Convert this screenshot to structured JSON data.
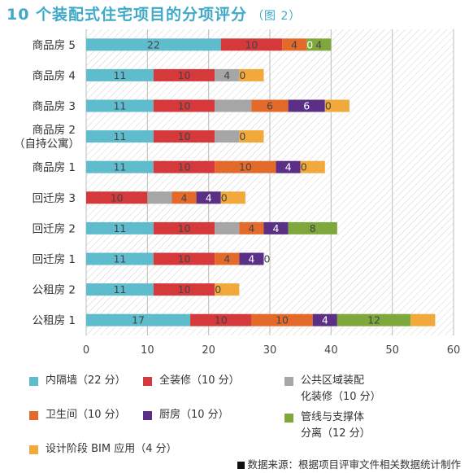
{
  "title": "10 个装配式住宅项目的分项评分",
  "subtitle": "（图 2）",
  "colors": {
    "partition": "#5fbccd",
    "decoration": "#d6393b",
    "public": "#a6a6a6",
    "bathroom": "#e46a2b",
    "kitchen": "#5b2f85",
    "pipeline": "#7ea83c",
    "bim": "#f2a93b"
  },
  "chart_data": {
    "type": "bar",
    "orientation": "horizontal",
    "stacked": true,
    "xlim": [
      0,
      60
    ],
    "xticks": [
      0,
      10,
      20,
      30,
      40,
      50,
      60
    ],
    "grid": true,
    "categories": [
      {
        "lines": [
          "商品房 5"
        ]
      },
      {
        "lines": [
          "商品房 4"
        ]
      },
      {
        "lines": [
          "商品房 3"
        ]
      },
      {
        "lines": [
          "商品房 2",
          "（自持公寓）"
        ]
      },
      {
        "lines": [
          "商品房 1"
        ]
      },
      {
        "lines": [
          "回迁房 3"
        ]
      },
      {
        "lines": [
          "回迁房 2"
        ]
      },
      {
        "lines": [
          "回迁房 1"
        ]
      },
      {
        "lines": [
          "公租房 2"
        ]
      },
      {
        "lines": [
          "公租房 1"
        ]
      }
    ],
    "series": [
      {
        "key": "partition",
        "values": [
          22,
          11,
          11,
          11,
          11,
          0,
          11,
          11,
          11,
          17
        ]
      },
      {
        "key": "decoration",
        "values": [
          10,
          10,
          10,
          10,
          10,
          10,
          10,
          10,
          10,
          10
        ]
      },
      {
        "key": "public",
        "values": [
          0,
          4,
          6,
          4,
          0,
          4,
          4,
          0,
          0,
          0
        ]
      },
      {
        "key": "bathroom",
        "values": [
          4,
          0,
          6,
          0,
          10,
          4,
          4,
          4,
          0,
          10
        ]
      },
      {
        "key": "kitchen",
        "values": [
          0,
          0,
          6,
          0,
          4,
          4,
          4,
          4,
          0,
          4
        ]
      },
      {
        "key": "pipeline",
        "values": [
          4,
          0,
          0,
          0,
          0,
          0,
          8,
          0,
          0,
          12
        ]
      },
      {
        "key": "bim",
        "values": [
          0,
          4,
          4,
          4,
          4,
          4,
          0,
          0,
          4,
          4
        ]
      }
    ],
    "value_labels": [
      [
        {
          "series": "partition",
          "text": "22"
        },
        {
          "series": "decoration",
          "text": "10"
        },
        {
          "series": "bathroom",
          "text": "4"
        },
        {
          "series": "kitchen",
          "text": "0"
        },
        {
          "series": "pipeline",
          "text": "4"
        }
      ],
      [
        {
          "series": "partition",
          "text": "11"
        },
        {
          "series": "decoration",
          "text": "10"
        },
        {
          "series": "public",
          "text": "4"
        },
        {
          "series": "bathroom",
          "text": "0"
        }
      ],
      [
        {
          "series": "partition",
          "text": "11"
        },
        {
          "series": "decoration",
          "text": "10"
        },
        {
          "series": "bathroom",
          "text": "6"
        },
        {
          "series": "kitchen",
          "text": "6"
        },
        {
          "series": "pipeline",
          "text": "0"
        }
      ],
      [
        {
          "series": "partition",
          "text": "11"
        },
        {
          "series": "decoration",
          "text": "10"
        },
        {
          "series": "bathroom",
          "text": "0"
        }
      ],
      [
        {
          "series": "partition",
          "text": "11"
        },
        {
          "series": "decoration",
          "text": "10"
        },
        {
          "series": "bathroom",
          "text": "10"
        },
        {
          "series": "kitchen",
          "text": "4"
        },
        {
          "series": "pipeline",
          "text": "0"
        }
      ],
      [
        {
          "series": "decoration",
          "text": "10"
        },
        {
          "series": "bathroom",
          "text": "4"
        },
        {
          "series": "kitchen",
          "text": "4"
        },
        {
          "series": "pipeline",
          "text": "0"
        }
      ],
      [
        {
          "series": "partition",
          "text": "11"
        },
        {
          "series": "decoration",
          "text": "10"
        },
        {
          "series": "bathroom",
          "text": "4"
        },
        {
          "series": "kitchen",
          "text": "4"
        },
        {
          "series": "pipeline",
          "text": "8"
        }
      ],
      [
        {
          "series": "partition",
          "text": "11"
        },
        {
          "series": "decoration",
          "text": "10"
        },
        {
          "series": "bathroom",
          "text": "4"
        },
        {
          "series": "kitchen",
          "text": "4"
        },
        {
          "series": "pipeline",
          "text": "0"
        }
      ],
      [
        {
          "series": "partition",
          "text": "11"
        },
        {
          "series": "decoration",
          "text": "10"
        },
        {
          "series": "bathroom",
          "text": "0"
        }
      ],
      [
        {
          "series": "partition",
          "text": "17"
        },
        {
          "series": "decoration",
          "text": "10"
        },
        {
          "series": "bathroom",
          "text": "10"
        },
        {
          "series": "kitchen",
          "text": "4"
        },
        {
          "series": "pipeline",
          "text": "12"
        }
      ]
    ],
    "legend": [
      {
        "key": "partition",
        "lines": [
          "内隔墙（22 分）"
        ]
      },
      {
        "key": "decoration",
        "lines": [
          "全装修（10 分）"
        ]
      },
      {
        "key": "public",
        "lines": [
          "公共区域装配",
          "化装修（10 分）"
        ]
      },
      {
        "key": "bathroom",
        "lines": [
          "卫生间（10 分）"
        ]
      },
      {
        "key": "kitchen",
        "lines": [
          "厨房（10 分）"
        ]
      },
      {
        "key": "pipeline",
        "lines": [
          "管线与支撑体",
          "分离（12 分）"
        ]
      },
      {
        "key": "bim",
        "lines": [
          "设计阶段 BIM 应用（4 分）"
        ]
      }
    ]
  },
  "source": "数据来源：根据项目评审文件相关数据统计制作"
}
